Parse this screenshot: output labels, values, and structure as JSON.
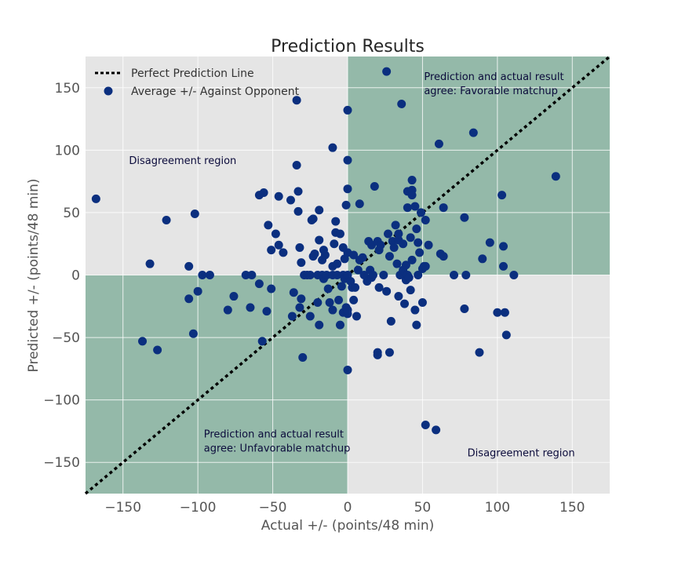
{
  "chart_data": {
    "type": "scatter",
    "title": "Prediction Results",
    "xlabel": "Actual +/- (points/48 min)",
    "ylabel": "Predicted +/- (points/48 min)",
    "xlim": [
      -175,
      175
    ],
    "ylim": [
      -175,
      175
    ],
    "xticks": [
      -150,
      -100,
      -50,
      0,
      50,
      100,
      150
    ],
    "yticks": [
      -150,
      -100,
      -50,
      0,
      50,
      100,
      150
    ],
    "xtick_labels": [
      "−150",
      "−100",
      "−50",
      "0",
      "50",
      "100",
      "150"
    ],
    "ytick_labels": [
      "−150",
      "−100",
      "−50",
      "0",
      "50",
      "100",
      "150"
    ],
    "grid": true,
    "legend_placement": "top-left",
    "colors": {
      "background": "#e5e5e5",
      "agree_region": "#94b9a9",
      "points": "#0b2f7f",
      "line": "#000000",
      "grid": "#ffffff"
    },
    "regions": [
      {
        "label": "Prediction and actual result agree: Favorable matchup",
        "lines": [
          "Prediction and actual result",
          "agree: Favorable matchup"
        ],
        "x": [
          0,
          175
        ],
        "y": [
          0,
          175
        ],
        "label_x": 51,
        "label_y": 156
      },
      {
        "label": "Prediction and actual result agree: Unfavorable matchup",
        "lines": [
          "Prediction and actual result",
          "agree: Unfavorable matchup"
        ],
        "x": [
          -175,
          0
        ],
        "y": [
          -175,
          0
        ],
        "label_x": -96,
        "label_y": -130
      },
      {
        "label": "Disagreement region",
        "lines": [
          "Disagreement region"
        ],
        "label_x": -146,
        "label_y": 89
      },
      {
        "label": "Disagreement region",
        "lines": [
          "Disagreement region"
        ],
        "label_x": 80,
        "label_y": -145
      }
    ],
    "series": [
      {
        "name": "Perfect Prediction Line",
        "kind": "line",
        "style": "dotted",
        "x": [
          -175,
          175
        ],
        "y": [
          -175,
          175
        ]
      },
      {
        "name": "Average +/- Against Opponent",
        "kind": "scatter",
        "points": [
          [
            -168,
            61
          ],
          [
            -137,
            -53
          ],
          [
            -132,
            9
          ],
          [
            -127,
            -60
          ],
          [
            -121,
            44
          ],
          [
            -106,
            7
          ],
          [
            -106,
            -19
          ],
          [
            -103,
            -47
          ],
          [
            -102,
            49
          ],
          [
            -100,
            -13
          ],
          [
            -97,
            0
          ],
          [
            -92,
            0
          ],
          [
            -80,
            -28
          ],
          [
            -76,
            -17
          ],
          [
            -68,
            0
          ],
          [
            -65,
            -26
          ],
          [
            -64,
            0
          ],
          [
            -59,
            64
          ],
          [
            -59,
            -7
          ],
          [
            -57,
            -53
          ],
          [
            -56,
            66
          ],
          [
            -54,
            -29
          ],
          [
            -53,
            40
          ],
          [
            -51,
            -11
          ],
          [
            -51,
            20
          ],
          [
            -48,
            33
          ],
          [
            -46,
            24
          ],
          [
            -46,
            63
          ],
          [
            -43,
            18
          ],
          [
            -38,
            60
          ],
          [
            -37,
            -33
          ],
          [
            -36,
            -14
          ],
          [
            -34,
            140
          ],
          [
            -34,
            88
          ],
          [
            -33,
            67
          ],
          [
            -33,
            51
          ],
          [
            -32,
            -26
          ],
          [
            -32,
            22
          ],
          [
            -31,
            -19
          ],
          [
            -31,
            10
          ],
          [
            -30,
            -66
          ],
          [
            -29,
            0
          ],
          [
            -27,
            0
          ],
          [
            -25,
            -33
          ],
          [
            -25,
            0
          ],
          [
            -24,
            44
          ],
          [
            -23,
            15
          ],
          [
            -23,
            45
          ],
          [
            -22,
            17
          ],
          [
            -20,
            0
          ],
          [
            -20,
            -22
          ],
          [
            -19,
            -40
          ],
          [
            -19,
            28
          ],
          [
            -19,
            52
          ],
          [
            -17,
            0
          ],
          [
            -17,
            12
          ],
          [
            -16,
            20
          ],
          [
            -16,
            -3
          ],
          [
            -15,
            16
          ],
          [
            -14,
            0
          ],
          [
            -13,
            -11
          ],
          [
            -12,
            -22
          ],
          [
            -10,
            -28
          ],
          [
            -10,
            0
          ],
          [
            -10,
            7
          ],
          [
            -10,
            102
          ],
          [
            -9,
            25
          ],
          [
            -8,
            34
          ],
          [
            -8,
            43
          ],
          [
            -7,
            0
          ],
          [
            -7,
            9
          ],
          [
            -6,
            -20
          ],
          [
            -5,
            -40
          ],
          [
            -5,
            33
          ],
          [
            -4,
            -9
          ],
          [
            -3,
            -30
          ],
          [
            -3,
            0
          ],
          [
            -3,
            22
          ],
          [
            -2,
            -3
          ],
          [
            -2,
            13
          ],
          [
            -1,
            -26
          ],
          [
            -1,
            56
          ],
          [
            0,
            -31
          ],
          [
            0,
            -28
          ],
          [
            0,
            -76
          ],
          [
            0,
            0
          ],
          [
            0,
            18
          ],
          [
            0,
            69
          ],
          [
            0,
            92
          ],
          [
            0,
            132
          ],
          [
            2,
            -5
          ],
          [
            3,
            -10
          ],
          [
            4,
            -20
          ],
          [
            4,
            16
          ],
          [
            5,
            -10
          ],
          [
            6,
            -33
          ],
          [
            7,
            4
          ],
          [
            8,
            57
          ],
          [
            8,
            12
          ],
          [
            10,
            14
          ],
          [
            11,
            0
          ],
          [
            13,
            -5
          ],
          [
            14,
            27
          ],
          [
            15,
            4
          ],
          [
            16,
            24
          ],
          [
            16,
            -2
          ],
          [
            17,
            0
          ],
          [
            18,
            71
          ],
          [
            20,
            27
          ],
          [
            20,
            -62
          ],
          [
            20,
            -64
          ],
          [
            21,
            -10
          ],
          [
            21,
            20
          ],
          [
            22,
            24
          ],
          [
            24,
            0
          ],
          [
            26,
            -13
          ],
          [
            26,
            163
          ],
          [
            27,
            33
          ],
          [
            28,
            15
          ],
          [
            28,
            -62
          ],
          [
            29,
            -37
          ],
          [
            30,
            27
          ],
          [
            31,
            22
          ],
          [
            32,
            40
          ],
          [
            33,
            9
          ],
          [
            34,
            -17
          ],
          [
            34,
            28
          ],
          [
            34,
            33
          ],
          [
            35,
            0
          ],
          [
            36,
            137
          ],
          [
            37,
            25
          ],
          [
            37,
            4
          ],
          [
            38,
            -23
          ],
          [
            39,
            -4
          ],
          [
            39,
            8
          ],
          [
            40,
            67
          ],
          [
            40,
            54
          ],
          [
            40,
            0
          ],
          [
            41,
            -2
          ],
          [
            42,
            30
          ],
          [
            42,
            -12
          ],
          [
            43,
            12
          ],
          [
            43,
            68
          ],
          [
            43,
            64
          ],
          [
            43,
            76
          ],
          [
            45,
            -28
          ],
          [
            45,
            55
          ],
          [
            46,
            -40
          ],
          [
            46,
            37
          ],
          [
            47,
            26
          ],
          [
            47,
            0
          ],
          [
            48,
            18
          ],
          [
            49,
            50
          ],
          [
            50,
            -22
          ],
          [
            50,
            5
          ],
          [
            51,
            7
          ],
          [
            52,
            -120
          ],
          [
            52,
            44
          ],
          [
            52,
            7
          ],
          [
            54,
            24
          ],
          [
            59,
            -124
          ],
          [
            61,
            105
          ],
          [
            62,
            17
          ],
          [
            64,
            15
          ],
          [
            64,
            54
          ],
          [
            71,
            0
          ],
          [
            78,
            -27
          ],
          [
            78,
            46
          ],
          [
            79,
            0
          ],
          [
            84,
            114
          ],
          [
            88,
            -62
          ],
          [
            90,
            13
          ],
          [
            95,
            26
          ],
          [
            100,
            -30
          ],
          [
            103,
            64
          ],
          [
            104,
            23
          ],
          [
            104,
            7
          ],
          [
            105,
            -30
          ],
          [
            106,
            -48
          ],
          [
            111,
            0
          ],
          [
            139,
            79
          ]
        ]
      }
    ]
  }
}
